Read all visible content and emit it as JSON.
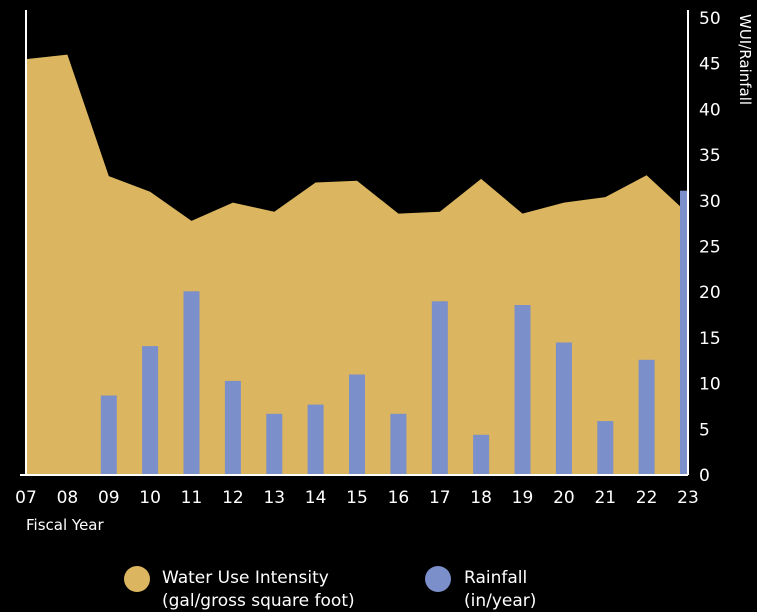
{
  "chart_data": {
    "type": "area",
    "x": [
      "07",
      "08",
      "09",
      "10",
      "11",
      "12",
      "13",
      "14",
      "15",
      "16",
      "17",
      "18",
      "19",
      "20",
      "21",
      "22",
      "23"
    ],
    "xlabel": "Fiscal Year",
    "ylabel": "WUI/Rainfall",
    "ylim": [
      0,
      50
    ],
    "yticks": [
      0,
      5,
      10,
      15,
      20,
      25,
      30,
      35,
      40,
      45,
      50
    ],
    "y_axis_side": "right",
    "series": [
      {
        "name": "Water Use Intensity (gal/gross square foot)",
        "type": "area",
        "color": "#dbb55f",
        "values": [
          45.5,
          46,
          32.7,
          31,
          27.8,
          29.8,
          28.8,
          32,
          32.2,
          28.6,
          28.8,
          32.4,
          28.6,
          29.8,
          30.4,
          32.8,
          28.6
        ]
      },
      {
        "name": "Rainfall (in/year)",
        "type": "bar",
        "color": "#7b8fcb",
        "values": [
          null,
          null,
          8.7,
          14.1,
          20.1,
          10.3,
          6.7,
          7.7,
          11,
          6.7,
          19,
          4.4,
          18.6,
          14.5,
          5.9,
          12.6,
          31.1
        ]
      }
    ],
    "legend": {
      "placement": "bottom",
      "items": [
        {
          "line1": "Water Use Intensity",
          "line2": "(gal/gross square foot)",
          "color": "#dbb55f"
        },
        {
          "line1": "Rainfall",
          "line2": "(in/year)",
          "color": "#7b8fcb"
        }
      ]
    },
    "grid": false
  }
}
